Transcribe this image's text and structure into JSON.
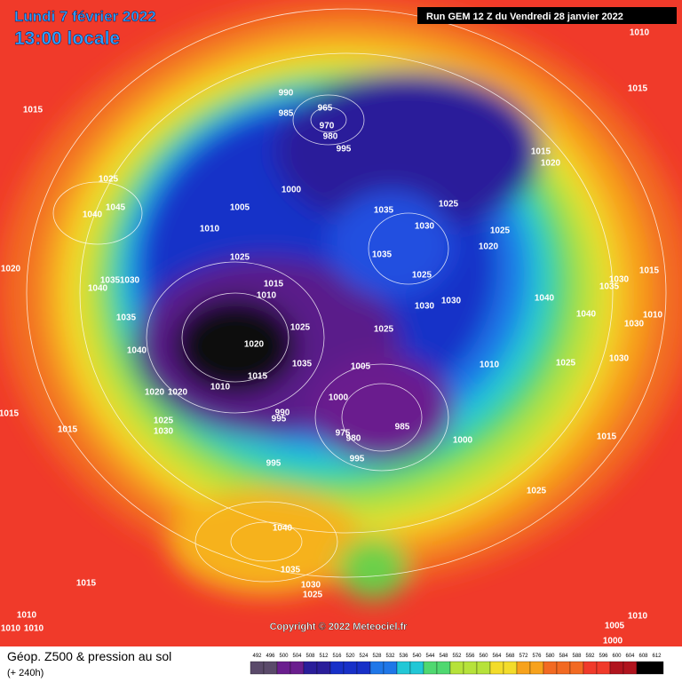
{
  "header": {
    "date": "Lundi 7 février 2022",
    "time": "13:00 locale",
    "run": "Run GEM 12 Z du Vendredi 28 janvier 2022"
  },
  "footer": {
    "title": "Géop. Z500 & pression au sol",
    "lead": "(+ 240h)",
    "copyright": "Copyright © 2022 Meteociel.fr"
  },
  "scale": [
    492,
    496,
    500,
    504,
    508,
    512,
    516,
    520,
    524,
    528,
    532,
    536,
    540,
    544,
    548,
    552,
    556,
    560,
    564,
    568,
    572,
    576,
    580,
    584,
    588,
    592,
    596,
    600,
    604,
    608,
    612
  ],
  "isobar_labels": [
    990,
    985,
    965,
    970,
    980,
    995,
    1000,
    1005,
    1010,
    1025,
    1015,
    1010,
    1035,
    1030,
    1025,
    1035,
    1025,
    1030,
    1030,
    1025,
    1020,
    1015,
    1020,
    1010,
    1015,
    1015,
    1025,
    1040,
    1045,
    1020,
    1035,
    1030,
    1040,
    1035,
    1040,
    1020,
    1020,
    1010,
    1020,
    1025,
    1015,
    1035,
    1005,
    1000,
    1025,
    1040,
    1040,
    1035,
    1030,
    1015,
    1010,
    1030,
    1025,
    1010,
    1030,
    1015,
    1000,
    985,
    980,
    975,
    995,
    990,
    995,
    995,
    1025,
    1030,
    1015,
    1015,
    1040,
    1035,
    1030,
    1025,
    1025,
    1015,
    1010,
    1010,
    1010,
    1005,
    1000,
    1010
  ]
}
